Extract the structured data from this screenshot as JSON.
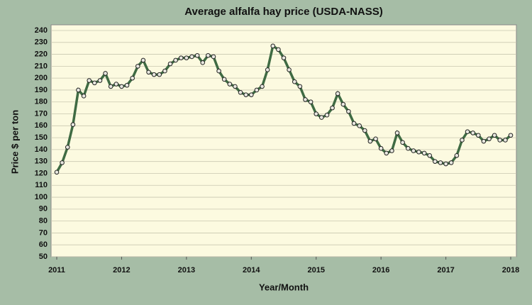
{
  "chart_data": {
    "type": "line",
    "title": "Average alfalfa hay price (USDA-NASS)",
    "x_label": "Year/Month",
    "y_label": "Price $ per ton",
    "xlim": [
      2011,
      2018
    ],
    "xticks": [
      2011,
      2012,
      2013,
      2014,
      2015,
      2016,
      2017,
      2018
    ],
    "ylim": [
      50,
      240
    ],
    "yticks": [
      50,
      60,
      70,
      80,
      90,
      100,
      110,
      120,
      130,
      140,
      150,
      160,
      170,
      180,
      190,
      200,
      210,
      220,
      230,
      240
    ],
    "grid": true,
    "x": [
      2011,
      2011.083,
      2011.167,
      2011.25,
      2011.333,
      2011.417,
      2011.5,
      2011.583,
      2011.667,
      2011.75,
      2011.833,
      2011.917,
      2012,
      2012.083,
      2012.167,
      2012.25,
      2012.333,
      2012.417,
      2012.5,
      2012.583,
      2012.667,
      2012.75,
      2012.833,
      2012.917,
      2013,
      2013.083,
      2013.167,
      2013.25,
      2013.333,
      2013.417,
      2013.5,
      2013.583,
      2013.667,
      2013.75,
      2013.833,
      2013.917,
      2014,
      2014.083,
      2014.167,
      2014.25,
      2014.333,
      2014.417,
      2014.5,
      2014.583,
      2014.667,
      2014.75,
      2014.833,
      2014.917,
      2015,
      2015.083,
      2015.167,
      2015.25,
      2015.333,
      2015.417,
      2015.5,
      2015.583,
      2015.667,
      2015.75,
      2015.833,
      2015.917,
      2016,
      2016.083,
      2016.167,
      2016.25,
      2016.333,
      2016.417,
      2016.5,
      2016.583,
      2016.667,
      2016.75,
      2016.833,
      2016.917,
      2017,
      2017.083,
      2017.167,
      2017.25,
      2017.333,
      2017.417,
      2017.5,
      2017.583,
      2017.667,
      2017.75,
      2017.833,
      2017.917,
      2018
    ],
    "series": [
      {
        "name": "Price",
        "color": "#3f6b43",
        "values": [
          121,
          129,
          142,
          161,
          190,
          185,
          198,
          196,
          198,
          204,
          193,
          195,
          193,
          194,
          200,
          210,
          215,
          205,
          203,
          203,
          206,
          212,
          215,
          217,
          217,
          218,
          219,
          213,
          219,
          218,
          206,
          199,
          195,
          193,
          188,
          186,
          186,
          190,
          193,
          207,
          227,
          224,
          217,
          207,
          197,
          193,
          182,
          180,
          170,
          167,
          169,
          175,
          187,
          178,
          172,
          162,
          160,
          156,
          147,
          149,
          141,
          137,
          139,
          154,
          146,
          141,
          139,
          138,
          137,
          135,
          130,
          129,
          128,
          129,
          135,
          148,
          155,
          154,
          152,
          147,
          149,
          152,
          148,
          148,
          152
        ]
      }
    ]
  }
}
